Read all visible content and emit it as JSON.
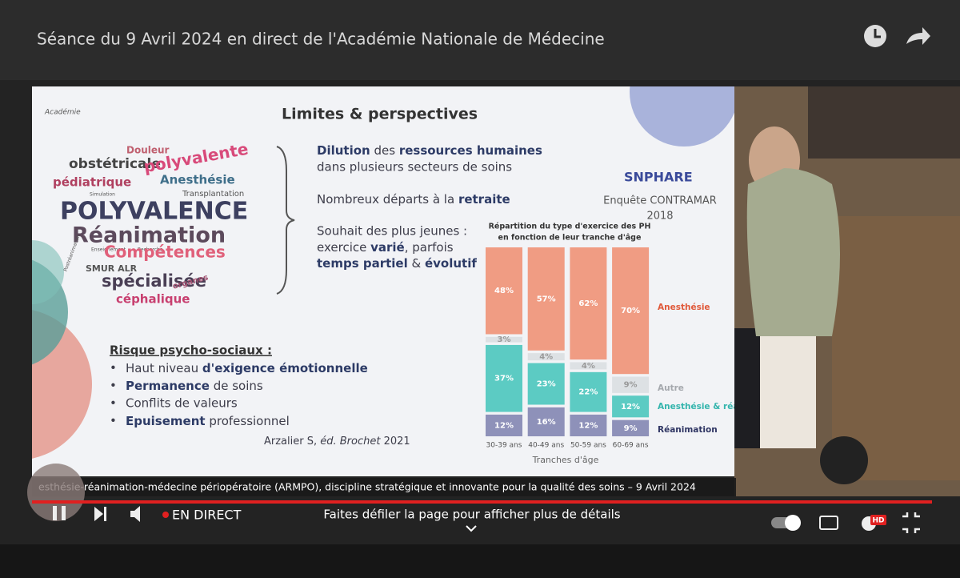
{
  "player": {
    "title": "Séance du 9 Avril 2024 en direct de l'Académie Nationale de Médecine",
    "caption": "esthésie-réanimation-médecine périopératoire (ARMPO), discipline stratégique et innovante pour la qualité des soins – 9 Avril 2024",
    "live": "EN DIRECT",
    "scroll_hint": "Faites défiler la page pour afficher plus de détails",
    "hd_badge": "HD"
  },
  "slide": {
    "heading": "Limites & perspectives",
    "wordcloud": [
      "Douleur",
      "obstétricale",
      "polyvalente",
      "pédiatrique",
      "Anesthésie",
      "Transplantation",
      "Simulation",
      "POLYVALENCE",
      "Réanimation",
      "Enseignement",
      "Recherche",
      "Compétences",
      "Postréanimation",
      "SMUR ALR",
      "spécialisée",
      "organes",
      "céphalique"
    ],
    "points": [
      [
        "Dilution",
        " des ",
        "ressources humaines",
        "dans plusieurs secteurs de soins"
      ],
      [
        "Nombreux départs à la ",
        "retraite"
      ],
      [
        "Souhait des plus jeunes :",
        "exercice ",
        "varié",
        ", parfois",
        "temps partiel",
        " & ",
        "évolutif"
      ]
    ],
    "logo": "SNPHARE",
    "survey": [
      "Enquête CONTRAMAR",
      "2018"
    ],
    "risks_title": "Risque psycho-sociaux :",
    "risks": [
      [
        "Haut niveau ",
        "d'exigence émotionnelle"
      ],
      [
        "Permanence",
        " de soins"
      ],
      [
        "Conflits de valeurs"
      ],
      [
        "Epuisement",
        " professionnel"
      ]
    ],
    "citation": [
      "Arzalier S, ",
      "éd. Brochet",
      " 2021"
    ]
  },
  "chart_data": {
    "type": "bar",
    "stacked": true,
    "title": [
      "Répartition du type d'exercice des PH",
      "en fonction de leur tranche d'âge"
    ],
    "x_label": "Tranches d'âge",
    "categories": [
      "30-39 ans",
      "40-49 ans",
      "50-59 ans",
      "60-69 ans"
    ],
    "series": [
      {
        "name": "Réanimation",
        "color": "#8e91b9",
        "label_color": "#2f3563",
        "values": [
          12,
          16,
          12,
          9
        ],
        "value_labels": [
          "12%",
          "16%",
          "12%",
          "9%"
        ]
      },
      {
        "name": "Anesthésie & réanimation",
        "color": "#5ccbc3",
        "label_color": "#35b5ad",
        "values": [
          37,
          23,
          22,
          12
        ],
        "value_labels": [
          "37%",
          "23%",
          "22%",
          "12%"
        ]
      },
      {
        "name": "Autre",
        "color": "#dde1e4",
        "label_color": "#a5a8ad",
        "values": [
          3,
          4,
          4,
          9
        ],
        "value_labels": [
          "3%",
          "4%",
          "4%",
          "9%"
        ]
      },
      {
        "name": "Anesthésie",
        "color": "#f09c83",
        "label_color": "#e0593a",
        "values": [
          48,
          57,
          62,
          70
        ],
        "value_labels": [
          "48%",
          "57%",
          "62%",
          "70%"
        ]
      }
    ]
  }
}
